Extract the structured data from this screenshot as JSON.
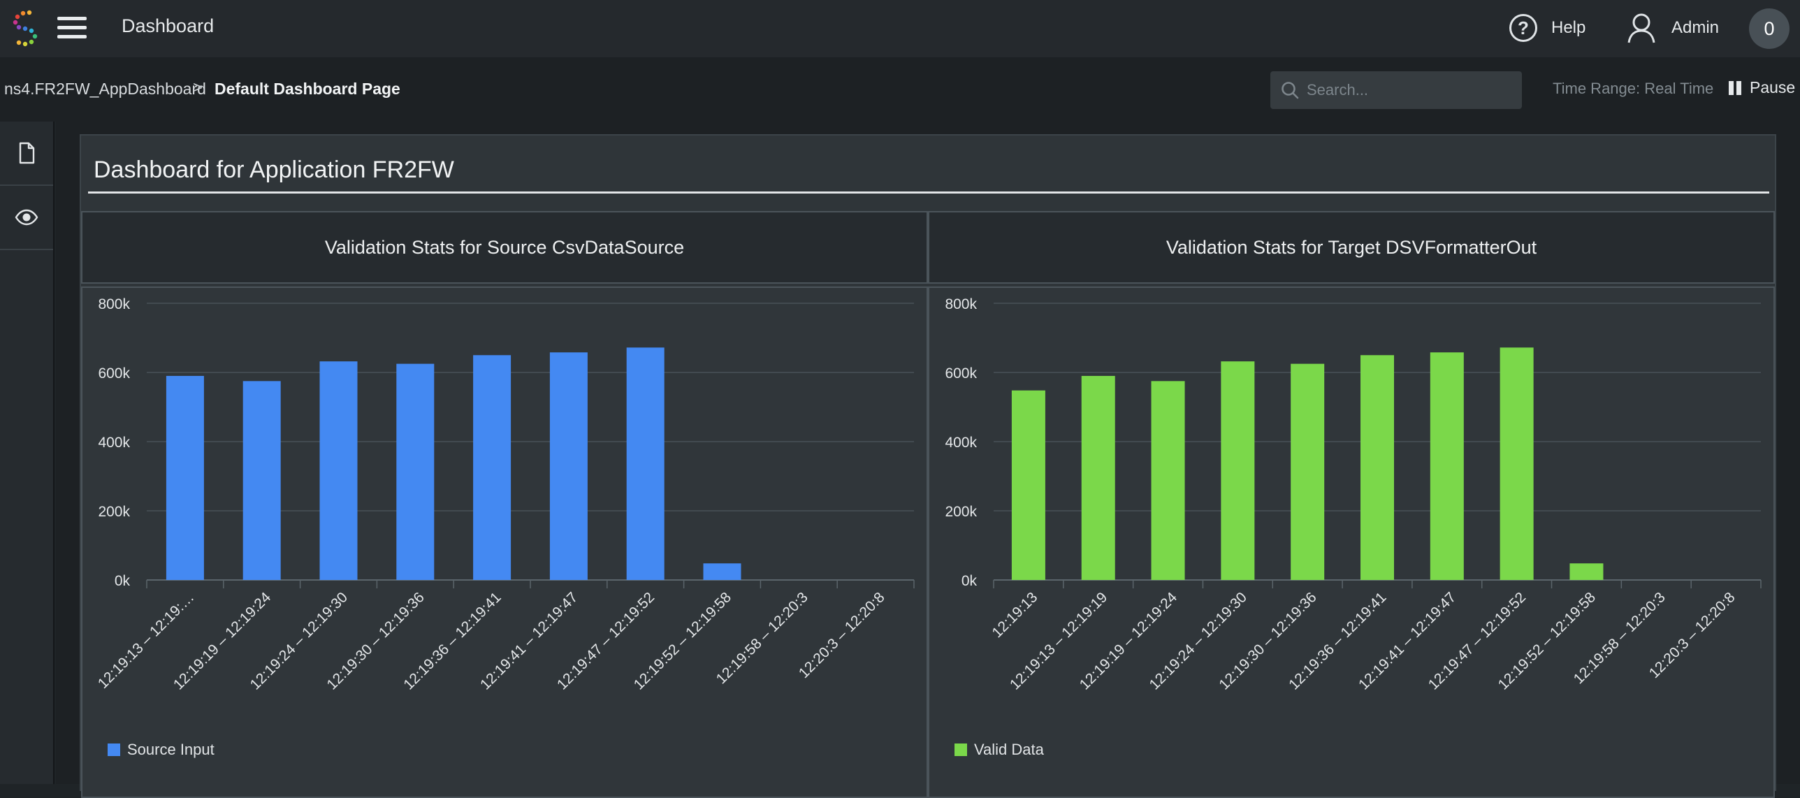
{
  "header": {
    "title": "Dashboard",
    "help_label": "Help",
    "admin_label": "Admin",
    "notification_count": "0"
  },
  "breadcrumb": {
    "parent": "ns4.FR2FW_AppDashboard",
    "separator": ">",
    "current": "Default Dashboard Page"
  },
  "toolbar": {
    "search_placeholder": "Search...",
    "time_range": "Time Range: Real Time",
    "pause_label": "Pause"
  },
  "rail": {
    "items": [
      {
        "icon": "document-icon"
      },
      {
        "icon": "eye-icon"
      }
    ]
  },
  "dashboard": {
    "title": "Dashboard for Application FR2FW"
  },
  "panels": [
    {
      "title": "Validation Stats for Source CsvDataSource"
    },
    {
      "title": "Validation Stats for Target DSVFormatterOut"
    }
  ],
  "colors": {
    "source_series": "#4489f2",
    "valid_series": "#7bd84a",
    "grid": "#485157",
    "axis_text": "#e4e7e9"
  },
  "chart_data": [
    {
      "type": "bar",
      "categories": [
        "12:19:13 – 12:19:…",
        "12:19:19 – 12:19:24",
        "12:19:24 – 12:19:30",
        "12:19:30 – 12:19:36",
        "12:19:36 – 12:19:41",
        "12:19:41 – 12:19:47",
        "12:19:47 – 12:19:52",
        "12:19:52 – 12:19:58",
        "12:19:58 – 12:20:3",
        "12:20:3 – 12:20:8"
      ],
      "series": [
        {
          "name": "Source Input",
          "values": [
            590000,
            575000,
            632000,
            625000,
            650000,
            658000,
            672000,
            48000,
            0,
            0
          ]
        }
      ],
      "yticks": [
        "0k",
        "200k",
        "400k",
        "600k",
        "800k"
      ],
      "ylim": [
        0,
        800000
      ],
      "legend": "bottom-left",
      "grid": true
    },
    {
      "type": "bar",
      "categories": [
        "12:19:13",
        "12:19:13 – 12:19:19",
        "12:19:19 – 12:19:24",
        "12:19:24 – 12:19:30",
        "12:19:30 – 12:19:36",
        "12:19:36 – 12:19:41",
        "12:19:41 – 12:19:47",
        "12:19:47 – 12:19:52",
        "12:19:52 – 12:19:58",
        "12:19:58 – 12:20:3",
        "12:20:3 – 12:20:8"
      ],
      "series": [
        {
          "name": "Valid Data",
          "values": [
            548000,
            590000,
            575000,
            632000,
            625000,
            650000,
            658000,
            672000,
            48000,
            0,
            0
          ]
        }
      ],
      "yticks": [
        "0k",
        "200k",
        "400k",
        "600k",
        "800k"
      ],
      "ylim": [
        0,
        800000
      ],
      "legend": "bottom-left",
      "grid": true
    }
  ]
}
